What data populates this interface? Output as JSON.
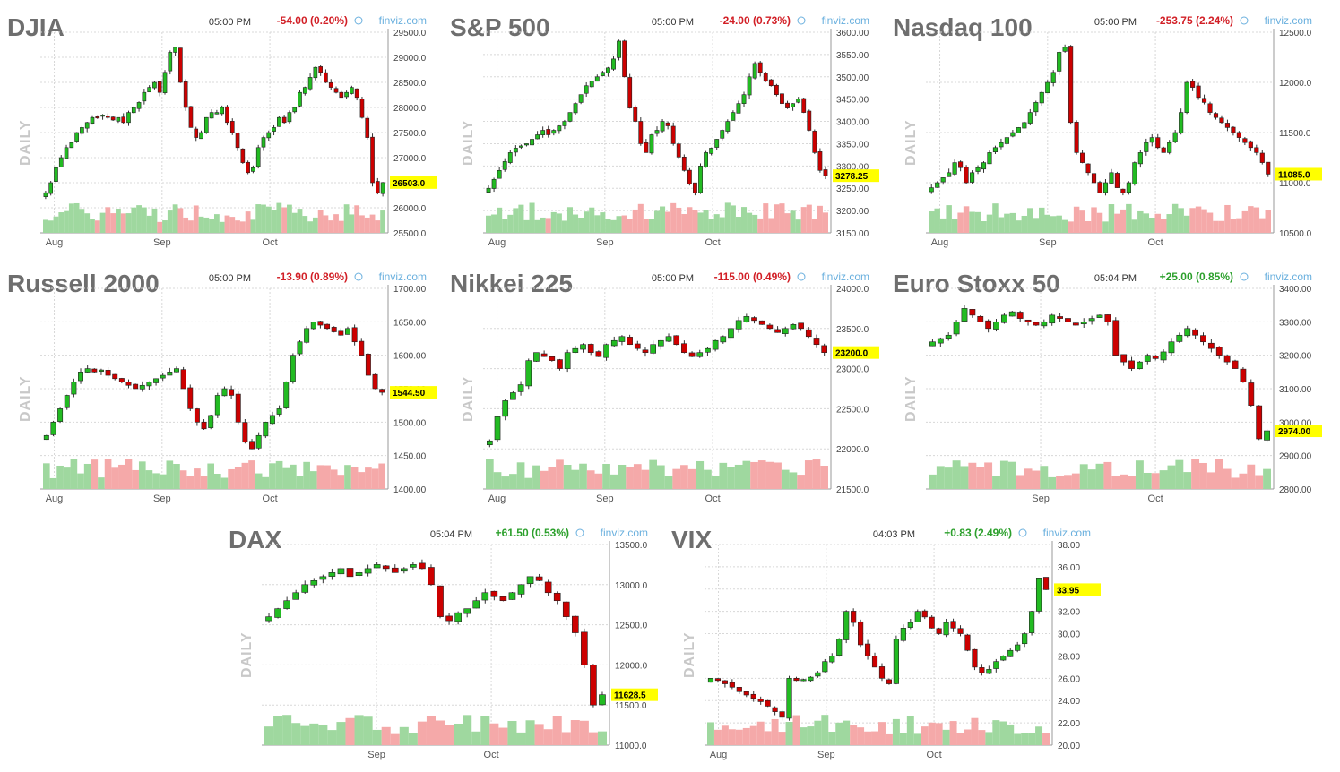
{
  "colors": {
    "up": "#22bb22",
    "down": "#cc0000",
    "vol_up": "#9fd89f",
    "vol_down": "#f5a9a9",
    "grid": "#d8d8d8",
    "last_bg": "#ffff00"
  },
  "axis_side_label": "DAILY",
  "chart_data": [
    {
      "type": "candlestick",
      "title": "DJIA",
      "time": "05:00 PM",
      "change": "-54.00 (0.20%)",
      "direction": "down",
      "brand": "finviz.com",
      "yticks": [
        "29500.0",
        "29000.0",
        "28500.0",
        "28000.0",
        "27500.0",
        "27000.0",
        "26500.0",
        "26000.0",
        "25500.0"
      ],
      "ylim": [
        25500,
        29500
      ],
      "last": "26503.0",
      "last_value": 26503,
      "xticks": [
        {
          "label": "Aug",
          "pos": 0.04
        },
        {
          "label": "Sep",
          "pos": 0.35
        },
        {
          "label": "Oct",
          "pos": 0.66
        }
      ],
      "closes": [
        26300,
        26500,
        26800,
        27000,
        27200,
        27300,
        27500,
        27600,
        27700,
        27800,
        27800,
        27850,
        27800,
        27750,
        27800,
        27700,
        27900,
        28000,
        28100,
        28300,
        28400,
        28500,
        28300,
        28700,
        29100,
        29200,
        28500,
        28000,
        27600,
        27400,
        27500,
        27800,
        27900,
        27900,
        28000,
        27700,
        27500,
        27200,
        26900,
        26700,
        26800,
        27200,
        27400,
        27500,
        27600,
        27800,
        27700,
        27900,
        28000,
        28300,
        28400,
        28600,
        28800,
        28700,
        28500,
        28400,
        28300,
        28200,
        28300,
        28400,
        28200,
        27800,
        27400,
        26500,
        26300,
        26503
      ]
    },
    {
      "type": "candlestick",
      "title": "S&P 500",
      "time": "05:00 PM",
      "change": "-24.00 (0.73%)",
      "direction": "down",
      "brand": "finviz.com",
      "yticks": [
        "3600.00",
        "3550.00",
        "3500.00",
        "3450.00",
        "3400.00",
        "3350.00",
        "3300.00",
        "3250.00",
        "3200.00",
        "3150.00"
      ],
      "ylim": [
        3150,
        3600
      ],
      "last": "3278.25",
      "last_value": 3278.25,
      "xticks": [
        {
          "label": "Aug",
          "pos": 0.04
        },
        {
          "label": "Sep",
          "pos": 0.35
        },
        {
          "label": "Oct",
          "pos": 0.66
        }
      ],
      "closes": [
        3250,
        3270,
        3290,
        3310,
        3330,
        3340,
        3345,
        3350,
        3360,
        3370,
        3380,
        3370,
        3380,
        3390,
        3400,
        3420,
        3440,
        3460,
        3480,
        3490,
        3500,
        3510,
        3520,
        3540,
        3580,
        3500,
        3430,
        3400,
        3350,
        3330,
        3370,
        3380,
        3400,
        3390,
        3350,
        3320,
        3290,
        3260,
        3240,
        3300,
        3330,
        3340,
        3360,
        3380,
        3400,
        3420,
        3440,
        3460,
        3500,
        3530,
        3510,
        3490,
        3480,
        3460,
        3440,
        3430,
        3440,
        3450,
        3420,
        3380,
        3330,
        3290,
        3278.25
      ]
    },
    {
      "type": "candlestick",
      "title": "Nasdaq 100",
      "time": "05:00 PM",
      "change": "-253.75 (2.24%)",
      "direction": "down",
      "brand": "finviz.com",
      "yticks": [
        "12500.0",
        "12000.0",
        "11500.0",
        "11000.0",
        "10500.0"
      ],
      "ylim": [
        10500,
        12500
      ],
      "last": "11085.0",
      "last_value": 11085,
      "xticks": [
        {
          "label": "Aug",
          "pos": 0.04
        },
        {
          "label": "Sep",
          "pos": 0.35
        },
        {
          "label": "Oct",
          "pos": 0.66
        }
      ],
      "closes": [
        10950,
        11000,
        11050,
        11100,
        11200,
        11150,
        11000,
        11100,
        11150,
        11200,
        11300,
        11350,
        11400,
        11450,
        11500,
        11550,
        11600,
        11700,
        11800,
        11900,
        12000,
        12100,
        12300,
        12350,
        11600,
        11300,
        11200,
        11100,
        11000,
        10900,
        11000,
        11100,
        10950,
        10900,
        11000,
        11200,
        11300,
        11400,
        11450,
        11350,
        11300,
        11400,
        11500,
        11700,
        12000,
        11950,
        11850,
        11800,
        11700,
        11650,
        11600,
        11550,
        11500,
        11450,
        11400,
        11350,
        11300,
        11200,
        11085
      ]
    },
    {
      "type": "candlestick",
      "title": "Russell 2000",
      "time": "05:00 PM",
      "change": "-13.90 (0.89%)",
      "direction": "down",
      "brand": "finviz.com",
      "yticks": [
        "1700.00",
        "1650.00",
        "1600.00",
        "1550.00",
        "1500.00",
        "1450.00",
        "1400.00"
      ],
      "ylim": [
        1400,
        1700
      ],
      "last": "1544.50",
      "last_value": 1544.5,
      "xticks": [
        {
          "label": "Aug",
          "pos": 0.04
        },
        {
          "label": "Sep",
          "pos": 0.35
        },
        {
          "label": "Oct",
          "pos": 0.66
        }
      ],
      "closes": [
        1480,
        1500,
        1520,
        1540,
        1560,
        1575,
        1580,
        1575,
        1578,
        1570,
        1565,
        1560,
        1555,
        1550,
        1555,
        1560,
        1565,
        1570,
        1575,
        1580,
        1550,
        1520,
        1500,
        1490,
        1510,
        1540,
        1550,
        1540,
        1500,
        1470,
        1460,
        1480,
        1500,
        1510,
        1520,
        1560,
        1600,
        1620,
        1640,
        1650,
        1645,
        1640,
        1635,
        1630,
        1640,
        1620,
        1600,
        1570,
        1550,
        1544.5
      ]
    },
    {
      "type": "candlestick",
      "title": "Nikkei 225",
      "time": "05:00 PM",
      "change": "-115.00 (0.49%)",
      "direction": "down",
      "brand": "finviz.com",
      "yticks": [
        "24000.0",
        "23500.0",
        "23000.0",
        "22500.0",
        "22000.0",
        "21500.0"
      ],
      "ylim": [
        21500,
        24000
      ],
      "last": "23200.0",
      "last_value": 23200,
      "xticks": [
        {
          "label": "Aug",
          "pos": 0.04
        },
        {
          "label": "Sep",
          "pos": 0.35
        },
        {
          "label": "Oct",
          "pos": 0.66
        }
      ],
      "closes": [
        22100,
        22400,
        22600,
        22700,
        22800,
        23100,
        23200,
        23150,
        23100,
        23000,
        23200,
        23250,
        23300,
        23200,
        23150,
        23300,
        23350,
        23400,
        23300,
        23250,
        23200,
        23300,
        23350,
        23400,
        23300,
        23200,
        23150,
        23200,
        23250,
        23350,
        23400,
        23500,
        23600,
        23650,
        23600,
        23550,
        23500,
        23450,
        23500,
        23550,
        23500,
        23400,
        23300,
        23200
      ]
    },
    {
      "type": "candlestick",
      "title": "Euro Stoxx 50",
      "time": "05:04 PM",
      "change": "+25.00 (0.85%)",
      "direction": "up",
      "brand": "finviz.com",
      "yticks": [
        "3400.00",
        "3300.00",
        "3200.00",
        "3100.00",
        "3000.00",
        "2900.00",
        "2800.00"
      ],
      "ylim": [
        2800,
        3400
      ],
      "last": "2974.00",
      "last_value": 2974,
      "xticks": [
        {
          "label": "Sep",
          "pos": 0.33
        },
        {
          "label": "Oct",
          "pos": 0.66
        }
      ],
      "closes": [
        3240,
        3250,
        3260,
        3300,
        3340,
        3320,
        3300,
        3280,
        3300,
        3320,
        3330,
        3310,
        3300,
        3290,
        3300,
        3320,
        3310,
        3300,
        3290,
        3300,
        3310,
        3320,
        3300,
        3200,
        3180,
        3160,
        3180,
        3200,
        3190,
        3210,
        3240,
        3260,
        3280,
        3260,
        3240,
        3220,
        3200,
        3180,
        3160,
        3120,
        3050,
        2950,
        2974
      ]
    },
    {
      "type": "candlestick",
      "title": "DAX",
      "time": "05:04 PM",
      "change": "+61.50 (0.53%)",
      "direction": "up",
      "brand": "finviz.com",
      "yticks": [
        "13500.0",
        "13000.0",
        "12500.0",
        "12000.0",
        "11500.0",
        "11000.0"
      ],
      "ylim": [
        11000,
        13500
      ],
      "last": "11628.5",
      "last_value": 11628.5,
      "xticks": [
        {
          "label": "Sep",
          "pos": 0.33
        },
        {
          "label": "Oct",
          "pos": 0.66
        }
      ],
      "closes": [
        12600,
        12700,
        12800,
        12900,
        13000,
        13050,
        13100,
        13150,
        13200,
        13100,
        13150,
        13200,
        13250,
        13200,
        13150,
        13200,
        13250,
        13200,
        13000,
        12600,
        12550,
        12650,
        12700,
        12800,
        12900,
        12850,
        12800,
        12900,
        13000,
        13100,
        13050,
        12900,
        12800,
        12600,
        12400,
        12000,
        11500,
        11628.5
      ]
    },
    {
      "type": "candlestick",
      "title": "VIX",
      "time": "04:03 PM",
      "change": "+0.83 (2.49%)",
      "direction": "up",
      "brand": "finviz.com",
      "yticks": [
        "38.00",
        "36.00",
        "34.00",
        "32.00",
        "30.00",
        "28.00",
        "26.00",
        "24.00",
        "22.00",
        "20.00"
      ],
      "ylim": [
        20,
        38
      ],
      "last": "33.95",
      "last_value": 33.95,
      "xticks": [
        {
          "label": "Aug",
          "pos": 0.04
        },
        {
          "label": "Sep",
          "pos": 0.35
        },
        {
          "label": "Oct",
          "pos": 0.66
        }
      ],
      "closes": [
        26,
        25.8,
        25.5,
        25.2,
        24.8,
        24.5,
        24.2,
        23.9,
        23.5,
        23,
        22.5,
        26,
        25.8,
        25.9,
        26.1,
        26.5,
        27.5,
        28,
        29.5,
        32,
        31,
        29,
        28,
        27,
        26,
        25.5,
        29.5,
        30.5,
        31,
        32,
        31.5,
        30.5,
        30,
        31,
        30.5,
        30,
        28.5,
        27,
        26.5,
        26.8,
        27.5,
        28,
        28.5,
        29,
        30,
        32,
        35,
        33.95
      ]
    }
  ]
}
